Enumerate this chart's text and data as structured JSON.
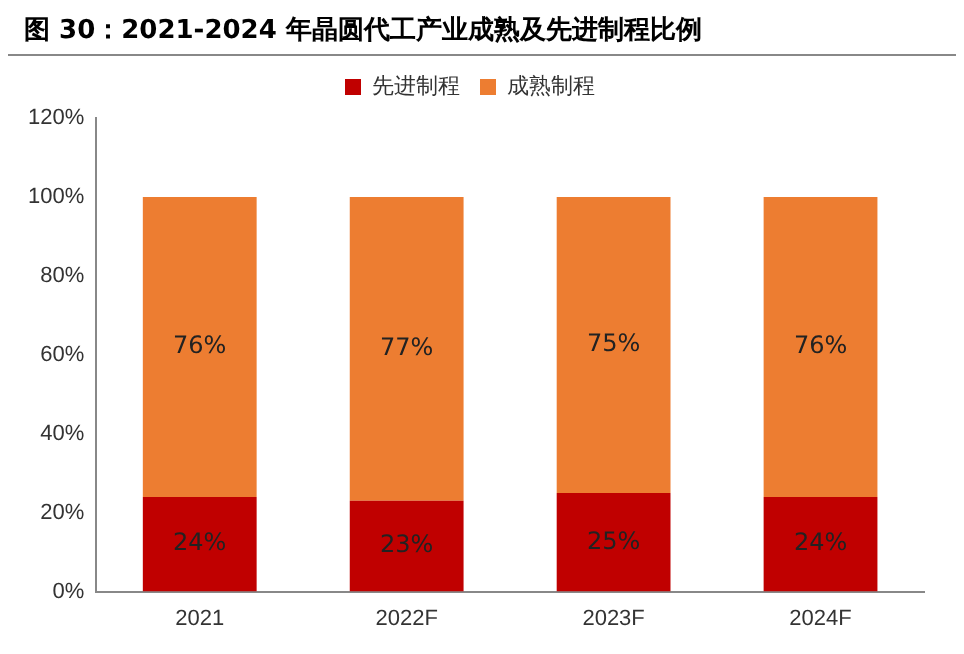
{
  "chart_data": {
    "type": "bar",
    "title": "图 30：2021-2024 年晶圆代工产业成熟及先进制程比例",
    "categories": [
      "2021",
      "2022F",
      "2023F",
      "2024F"
    ],
    "stacked": true,
    "series": [
      {
        "name": "先进制程",
        "color": "#c00000",
        "values": [
          24,
          23,
          25,
          24
        ],
        "value_labels": [
          "24%",
          "23%",
          "25%",
          "24%"
        ]
      },
      {
        "name": "成熟制程",
        "color": "#ed7d31",
        "values": [
          76,
          77,
          75,
          76
        ],
        "value_labels": [
          "76%",
          "77%",
          "75%",
          "76%"
        ]
      }
    ],
    "ylim": [
      0,
      120
    ],
    "yticks": [
      {
        "value": 0,
        "label": "0%"
      },
      {
        "value": 20,
        "label": "20%"
      },
      {
        "value": 40,
        "label": "40%"
      },
      {
        "value": 60,
        "label": "60%"
      },
      {
        "value": 80,
        "label": "80%"
      },
      {
        "value": 100,
        "label": "100%"
      },
      {
        "value": 120,
        "label": "120%"
      }
    ],
    "grid": false,
    "legend": "top"
  }
}
